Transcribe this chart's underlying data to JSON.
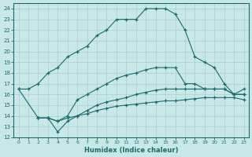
{
  "xlabel": "Humidex (Indice chaleur)",
  "bg_color": "#c8e8e8",
  "line_color": "#1a6b6b",
  "xlim": [
    -0.5,
    23.5
  ],
  "ylim": [
    12,
    24.5
  ],
  "yticks": [
    12,
    13,
    14,
    15,
    16,
    17,
    18,
    19,
    20,
    21,
    22,
    23,
    24
  ],
  "xticks": [
    0,
    1,
    2,
    3,
    4,
    5,
    6,
    7,
    8,
    9,
    10,
    11,
    12,
    13,
    14,
    15,
    16,
    17,
    18,
    19,
    20,
    21,
    22,
    23
  ],
  "curve1_x": [
    0,
    1,
    2,
    3,
    4,
    5,
    6,
    7,
    8,
    9,
    10,
    11,
    12,
    13,
    14,
    15,
    16,
    17,
    18,
    19,
    20,
    21,
    22,
    23
  ],
  "curve1_y": [
    16.5,
    16.5,
    17.0,
    18.0,
    18.5,
    19.5,
    20.0,
    20.5,
    21.5,
    22.0,
    23.0,
    23.0,
    23.0,
    24.0,
    24.0,
    24.0,
    23.5,
    22.0,
    19.5,
    19.0,
    18.5,
    17.0,
    16.0,
    16.5
  ],
  "curve2_x": [
    0,
    2,
    3,
    4,
    5,
    6,
    7,
    8,
    9,
    10,
    11,
    12,
    13,
    14,
    15,
    16,
    17,
    18,
    19,
    20,
    21,
    22,
    23
  ],
  "curve2_y": [
    16.5,
    13.8,
    13.8,
    13.5,
    14.0,
    15.5,
    16.0,
    16.5,
    17.0,
    17.5,
    17.8,
    18.0,
    18.3,
    18.5,
    18.5,
    18.5,
    17.0,
    17.0,
    16.5,
    16.5,
    16.5,
    16.0,
    16.0
  ],
  "curve3_x": [
    2,
    3,
    4,
    5,
    6,
    7,
    8,
    9,
    10,
    11,
    12,
    13,
    14,
    15,
    16,
    17,
    18,
    19,
    20,
    21,
    22,
    23
  ],
  "curve3_y": [
    13.8,
    13.8,
    12.5,
    13.5,
    14.0,
    14.5,
    15.0,
    15.3,
    15.5,
    15.7,
    16.0,
    16.2,
    16.4,
    16.5,
    16.5,
    16.5,
    16.5,
    16.5,
    16.5,
    16.5,
    16.0,
    16.0
  ],
  "curve4_x": [
    2,
    3,
    4,
    5,
    6,
    7,
    8,
    9,
    10,
    11,
    12,
    13,
    14,
    15,
    16,
    17,
    18,
    19,
    20,
    21,
    22,
    23
  ],
  "curve4_y": [
    13.8,
    13.8,
    13.5,
    13.8,
    14.0,
    14.2,
    14.5,
    14.7,
    14.9,
    15.0,
    15.1,
    15.2,
    15.3,
    15.4,
    15.4,
    15.5,
    15.6,
    15.7,
    15.7,
    15.7,
    15.7,
    15.5
  ]
}
